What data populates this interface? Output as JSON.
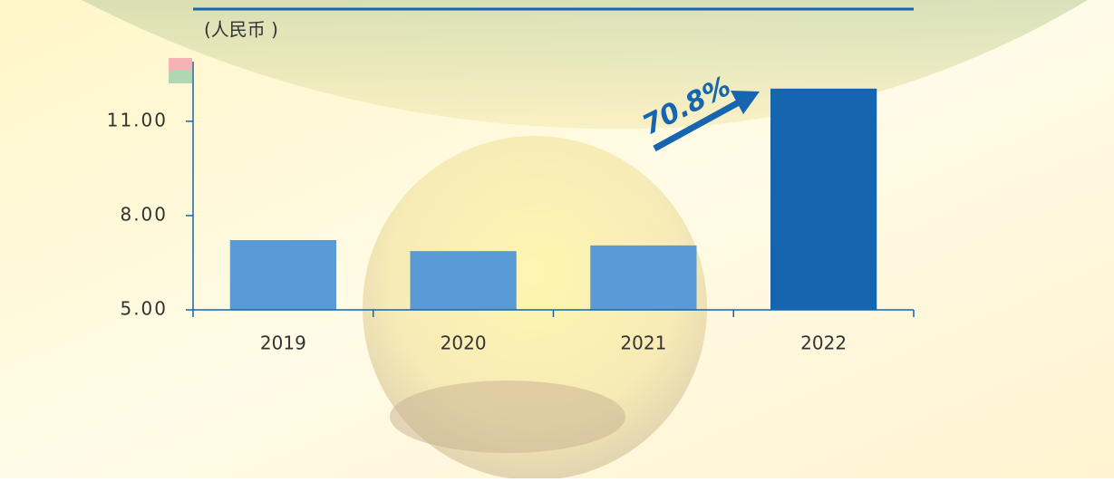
{
  "chart_data": {
    "type": "bar",
    "title": "(人民币    )",
    "categories": [
      "2019",
      "2020",
      "2021",
      "2022"
    ],
    "values": [
      7.22,
      6.87,
      7.05,
      12.04
    ],
    "colors": [
      "#5b9bd5",
      "#5b9bd5",
      "#5b9bd5",
      "#1565b0"
    ],
    "ylim": [
      5,
      12.9
    ],
    "yticks": [
      {
        "value": 5,
        "label": "5.00"
      },
      {
        "value": 8,
        "label": "8.00"
      },
      {
        "value": 11,
        "label": "11.00"
      }
    ],
    "annotations": [
      "70.8%"
    ]
  }
}
